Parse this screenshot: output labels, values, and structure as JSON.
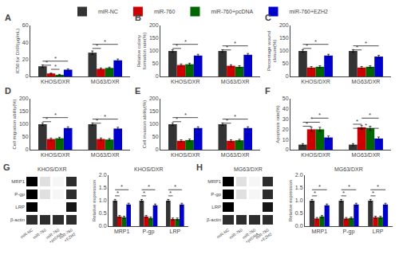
{
  "chart_data": [
    {
      "type": "bar",
      "label": "A",
      "ylabel": "IC50 for DXR(μg/mL)",
      "categories": [
        "KHOS/DXR",
        "MG63/DXR"
      ],
      "series": [
        {
          "name": "miR-NC",
          "color": "#333333",
          "values": [
            12,
            28
          ],
          "errors": [
            1.5,
            2
          ]
        },
        {
          "name": "miR-760",
          "color": "#cc0000",
          "values": [
            3.5,
            9
          ],
          "errors": [
            0.5,
            1
          ]
        },
        {
          "name": "miR-760+pcDNA",
          "color": "#006600",
          "values": [
            2,
            10
          ],
          "errors": [
            0.5,
            1
          ]
        },
        {
          "name": "miR-760+EZH2",
          "color": "#0000cc",
          "values": [
            8,
            19
          ],
          "errors": [
            1,
            1.5
          ]
        }
      ],
      "ylim": [
        0,
        60
      ],
      "yticks": [
        0,
        20,
        40,
        60
      ],
      "grid": false,
      "legend": "top",
      "annotations": [
        {
          "text": "*",
          "category": "KHOS/DXR",
          "from": "miR-NC",
          "to": "miR-760",
          "y": 13.2
        },
        {
          "text": "*",
          "category": "KHOS/DXR",
          "from": "miR-760",
          "to": "miR-760+pcDNA",
          "y": 8.4
        },
        {
          "text": "*",
          "category": "KHOS/DXR",
          "from": "miR-NC",
          "to": "miR-760+EZH2",
          "y": 18
        },
        {
          "text": "*",
          "category": "MG63/DXR",
          "from": "miR-NC",
          "to": "miR-760",
          "y": 33
        },
        {
          "text": "*",
          "category": "MG63/DXR",
          "from": "miR-NC",
          "to": "miR-760+EZH2",
          "y": 37.8
        }
      ]
    },
    {
      "type": "bar",
      "label": "B",
      "ylabel": "Relative colony\nformation rate(%)",
      "categories": [
        "KHOS/DXR",
        "MG63/DXR"
      ],
      "series": [
        {
          "name": "miR-NC",
          "color": "#333333",
          "values": [
            100,
            100
          ],
          "errors": [
            5,
            5
          ]
        },
        {
          "name": "miR-760",
          "color": "#cc0000",
          "values": [
            45,
            42
          ],
          "errors": [
            4,
            4
          ]
        },
        {
          "name": "miR-760+pcDNA",
          "color": "#006600",
          "values": [
            48,
            38
          ],
          "errors": [
            4,
            4
          ]
        },
        {
          "name": "miR-760+EZH2",
          "color": "#0000cc",
          "values": [
            82,
            85
          ],
          "errors": [
            5,
            5
          ]
        }
      ],
      "ylim": [
        0,
        200
      ],
      "yticks": [
        0,
        50,
        100,
        150,
        200
      ],
      "grid": false,
      "legend": "top",
      "annotations": [
        {
          "text": "*",
          "category": "KHOS/DXR",
          "from": "miR-NC",
          "to": "miR-760",
          "y": 110
        },
        {
          "text": "*",
          "category": "KHOS/DXR",
          "from": "miR-NC",
          "to": "miR-760+EZH2",
          "y": 126
        },
        {
          "text": "*",
          "category": "MG63/DXR",
          "from": "miR-NC",
          "to": "miR-760",
          "y": 104
        },
        {
          "text": "*",
          "category": "MG63/DXR",
          "from": "miR-NC",
          "to": "miR-760+EZH2",
          "y": 120
        }
      ]
    },
    {
      "type": "bar",
      "label": "C",
      "ylabel": "Percentage wound\nclosure(%)",
      "categories": [
        "KHOS/DXR",
        "MG63/DXR"
      ],
      "series": [
        {
          "name": "miR-NC",
          "color": "#333333",
          "values": [
            100,
            100
          ],
          "errors": [
            5,
            5
          ]
        },
        {
          "name": "miR-760",
          "color": "#cc0000",
          "values": [
            35,
            35
          ],
          "errors": [
            4,
            4
          ]
        },
        {
          "name": "miR-760+pcDNA",
          "color": "#006600",
          "values": [
            38,
            38
          ],
          "errors": [
            4,
            4
          ]
        },
        {
          "name": "miR-760+EZH2",
          "color": "#0000cc",
          "values": [
            82,
            78
          ],
          "errors": [
            5,
            5
          ]
        }
      ],
      "ylim": [
        0,
        200
      ],
      "yticks": [
        0,
        50,
        100,
        150,
        200
      ],
      "grid": false,
      "legend": "top",
      "annotations": [
        {
          "text": "*",
          "category": "KHOS/DXR",
          "from": "miR-NC",
          "to": "miR-760",
          "y": 110
        },
        {
          "text": "*",
          "category": "KHOS/DXR",
          "from": "miR-NC",
          "to": "miR-760+EZH2",
          "y": 126
        },
        {
          "text": "*",
          "category": "MG63/DXR",
          "from": "miR-NC",
          "to": "miR-760",
          "y": 104
        },
        {
          "text": "*",
          "category": "MG63/DXR",
          "from": "miR-NC",
          "to": "miR-760+EZH2",
          "y": 120
        }
      ]
    },
    {
      "type": "bar",
      "label": "D",
      "ylabel": "Cell migration ability(%)",
      "categories": [
        "KHOS/DXR",
        "MG63/DXR"
      ],
      "series": [
        {
          "name": "miR-NC",
          "color": "#333333",
          "values": [
            100,
            100
          ],
          "errors": [
            5,
            5
          ]
        },
        {
          "name": "miR-760",
          "color": "#cc0000",
          "values": [
            42,
            42
          ],
          "errors": [
            4,
            4
          ]
        },
        {
          "name": "miR-760+pcDNA",
          "color": "#006600",
          "values": [
            45,
            40
          ],
          "errors": [
            4,
            4
          ]
        },
        {
          "name": "miR-760+EZH2",
          "color": "#0000cc",
          "values": [
            85,
            83
          ],
          "errors": [
            5,
            5
          ]
        }
      ],
      "ylim": [
        0,
        200
      ],
      "yticks": [
        0,
        50,
        100,
        150,
        200
      ],
      "grid": false,
      "legend": "top",
      "annotations": [
        {
          "text": "*",
          "category": "KHOS/DXR",
          "from": "miR-NC",
          "to": "miR-760",
          "y": 110
        },
        {
          "text": "*",
          "category": "KHOS/DXR",
          "from": "miR-NC",
          "to": "miR-760+EZH2",
          "y": 126
        },
        {
          "text": "*",
          "category": "MG63/DXR",
          "from": "miR-NC",
          "to": "miR-760",
          "y": 104
        },
        {
          "text": "*",
          "category": "MG63/DXR",
          "from": "miR-NC",
          "to": "miR-760+EZH2",
          "y": 120
        }
      ]
    },
    {
      "type": "bar",
      "label": "E",
      "ylabel": "Cell invasion ability(%)",
      "categories": [
        "KHOS/DXR",
        "MG63/DXR"
      ],
      "series": [
        {
          "name": "miR-NC",
          "color": "#333333",
          "values": [
            100,
            100
          ],
          "errors": [
            5,
            5
          ]
        },
        {
          "name": "miR-760",
          "color": "#cc0000",
          "values": [
            35,
            35
          ],
          "errors": [
            4,
            4
          ]
        },
        {
          "name": "miR-760+pcDNA",
          "color": "#006600",
          "values": [
            38,
            37
          ],
          "errors": [
            4,
            4
          ]
        },
        {
          "name": "miR-760+EZH2",
          "color": "#0000cc",
          "values": [
            85,
            85
          ],
          "errors": [
            5,
            5
          ]
        }
      ],
      "ylim": [
        0,
        200
      ],
      "yticks": [
        0,
        50,
        100,
        150,
        200
      ],
      "grid": false,
      "legend": "top",
      "annotations": [
        {
          "text": "*",
          "category": "KHOS/DXR",
          "from": "miR-NC",
          "to": "miR-760",
          "y": 110
        },
        {
          "text": "*",
          "category": "KHOS/DXR",
          "from": "miR-NC",
          "to": "miR-760+EZH2",
          "y": 126
        },
        {
          "text": "*",
          "category": "MG63/DXR",
          "from": "miR-NC",
          "to": "miR-760",
          "y": 104
        },
        {
          "text": "*",
          "category": "MG63/DXR",
          "from": "miR-NC",
          "to": "miR-760+EZH2",
          "y": 120
        }
      ]
    },
    {
      "type": "bar",
      "label": "F",
      "ylabel": "Apoptosis rate(%)",
      "categories": [
        "KHOS/DXR",
        "MG63/DXR"
      ],
      "series": [
        {
          "name": "miR-NC",
          "color": "#333333",
          "values": [
            5,
            5
          ],
          "errors": [
            1,
            1
          ]
        },
        {
          "name": "miR-760",
          "color": "#cc0000",
          "values": [
            20,
            22
          ],
          "errors": [
            2,
            2
          ]
        },
        {
          "name": "miR-760+pcDNA",
          "color": "#006600",
          "values": [
            20,
            21
          ],
          "errors": [
            2,
            2
          ]
        },
        {
          "name": "miR-760+EZH2",
          "color": "#0000cc",
          "values": [
            12,
            11
          ],
          "errors": [
            1.5,
            1.5
          ]
        }
      ],
      "ylim": [
        0,
        50
      ],
      "yticks": [
        0,
        10,
        20,
        30,
        40,
        50
      ],
      "grid": false,
      "legend": "top",
      "annotations": [
        {
          "text": "*",
          "category": "KHOS/DXR",
          "from": "miR-NC",
          "to": "miR-760",
          "y": 23
        },
        {
          "text": "*",
          "category": "KHOS/DXR",
          "from": "miR-NC",
          "to": "miR-760+pcDNA",
          "y": 27
        },
        {
          "text": "*",
          "category": "KHOS/DXR",
          "from": "miR-760",
          "to": "miR-760+EZH2",
          "y": 31
        },
        {
          "text": "*",
          "category": "MG63/DXR",
          "from": "miR-NC",
          "to": "miR-760",
          "y": 25
        },
        {
          "text": "*",
          "category": "MG63/DXR",
          "from": "miR-NC",
          "to": "miR-760+EZH2",
          "y": 21
        },
        {
          "text": "*",
          "category": "MG63/DXR",
          "from": "miR-760",
          "to": "miR-760+EZH2",
          "y": 31
        }
      ]
    },
    {
      "type": "heatmap",
      "label": "G",
      "title": "KHOS/DXR",
      "x": [
        "miR-NC",
        "miR-760",
        "miR-760\n+pcDNA",
        "miR-760\n+EZH2"
      ],
      "y": [
        "MRP1",
        "P-gp",
        "LRP",
        "β-actin"
      ],
      "cells": [
        [
          0.85,
          0.35,
          0.3,
          0.75
        ],
        [
          0.85,
          0.35,
          0.3,
          0.75
        ],
        [
          0.85,
          0.28,
          0.28,
          0.8
        ],
        [
          0.75,
          0.75,
          0.75,
          0.75
        ]
      ]
    },
    {
      "type": "bar",
      "title": "KHOS/DXR",
      "ylabel": "Relative expression",
      "categories": [
        "MRP1",
        "P-gp",
        "LRP"
      ],
      "series": [
        {
          "name": "miR-NC",
          "color": "#333333",
          "values": [
            1.0,
            1.0,
            1.0
          ],
          "errors": [
            0.05,
            0.05,
            0.05
          ]
        },
        {
          "name": "miR-760",
          "color": "#cc0000",
          "values": [
            0.38,
            0.38,
            0.28
          ],
          "errors": [
            0.04,
            0.04,
            0.04
          ]
        },
        {
          "name": "miR-760+pcDNA",
          "color": "#006600",
          "values": [
            0.35,
            0.32,
            0.28
          ],
          "errors": [
            0.04,
            0.04,
            0.04
          ]
        },
        {
          "name": "miR-760+EZH2",
          "color": "#0000cc",
          "values": [
            0.85,
            0.82,
            0.85
          ],
          "errors": [
            0.05,
            0.05,
            0.05
          ]
        }
      ],
      "ylim": [
        0,
        2.0
      ],
      "yticks": [
        {
          "value": 0,
          "label": "0.0"
        },
        0.5,
        {
          "value": 1.0,
          "label": "1.0"
        },
        1.5,
        {
          "value": 2.0,
          "label": "2.0"
        }
      ],
      "grid": false,
      "legend": "top",
      "annotations": [
        {
          "text": "*",
          "category": "MRP1",
          "from": "miR-NC",
          "to": "miR-760",
          "y": 1.19
        },
        {
          "text": "*",
          "category": "MRP1",
          "from": "miR-NC",
          "to": "miR-760+EZH2",
          "y": 1.43
        },
        {
          "text": "*",
          "category": "P-gp",
          "from": "miR-NC",
          "to": "miR-760",
          "y": 1.19
        },
        {
          "text": "*",
          "category": "P-gp",
          "from": "miR-NC",
          "to": "miR-760+EZH2",
          "y": 1.43
        },
        {
          "text": "*",
          "category": "LRP",
          "from": "miR-NC",
          "to": "miR-760",
          "y": 1.19
        },
        {
          "text": "*",
          "category": "LRP",
          "from": "miR-NC",
          "to": "miR-760+EZH2",
          "y": 1.43
        }
      ]
    },
    {
      "type": "heatmap",
      "label": "H",
      "title": "MG63/DXR",
      "x": [
        "miR-NC",
        "miR-760",
        "miR-760\n+pcDNA",
        "miR-760\n+EZH2"
      ],
      "y": [
        "MRP1",
        "P-gp",
        "LRP",
        "β-actin"
      ],
      "cells": [
        [
          0.85,
          0.35,
          0.3,
          0.75
        ],
        [
          0.85,
          0.35,
          0.3,
          0.75
        ],
        [
          0.85,
          0.28,
          0.28,
          0.8
        ],
        [
          0.75,
          0.75,
          0.75,
          0.75
        ]
      ]
    },
    {
      "type": "bar",
      "title": "MG63/DXR",
      "ylabel": "Relative expression",
      "categories": [
        "MRP1",
        "P-gp",
        "LRP"
      ],
      "series": [
        {
          "name": "miR-NC",
          "color": "#333333",
          "values": [
            1.0,
            1.0,
            1.0
          ],
          "errors": [
            0.05,
            0.05,
            0.05
          ]
        },
        {
          "name": "miR-760",
          "color": "#cc0000",
          "values": [
            0.3,
            0.3,
            0.35
          ],
          "errors": [
            0.04,
            0.04,
            0.04
          ]
        },
        {
          "name": "miR-760+pcDNA",
          "color": "#006600",
          "values": [
            0.38,
            0.32,
            0.35
          ],
          "errors": [
            0.04,
            0.04,
            0.04
          ]
        },
        {
          "name": "miR-760+EZH2",
          "color": "#0000cc",
          "values": [
            0.82,
            0.85,
            0.85
          ],
          "errors": [
            0.05,
            0.05,
            0.05
          ]
        }
      ],
      "ylim": [
        0,
        2.0
      ],
      "yticks": [
        {
          "value": 0,
          "label": "0.0"
        },
        0.5,
        {
          "value": 1.0,
          "label": "1.0"
        },
        1.5,
        {
          "value": 2.0,
          "label": "2.0"
        }
      ],
      "grid": false,
      "legend": "top",
      "annotations": [
        {
          "text": "*",
          "category": "MRP1",
          "from": "miR-NC",
          "to": "miR-760",
          "y": 1.19
        },
        {
          "text": "*",
          "category": "MRP1",
          "from": "miR-NC",
          "to": "miR-760+EZH2",
          "y": 1.43
        },
        {
          "text": "*",
          "category": "P-gp",
          "from": "miR-NC",
          "to": "miR-760",
          "y": 1.19
        },
        {
          "text": "*",
          "category": "P-gp",
          "from": "miR-NC",
          "to": "miR-760+EZH2",
          "y": 1.43
        },
        {
          "text": "*",
          "category": "LRP",
          "from": "miR-NC",
          "to": "miR-760",
          "y": 1.19
        },
        {
          "text": "*",
          "category": "LRP",
          "from": "miR-NC",
          "to": "miR-760+EZH2",
          "y": 1.43
        }
      ]
    }
  ]
}
